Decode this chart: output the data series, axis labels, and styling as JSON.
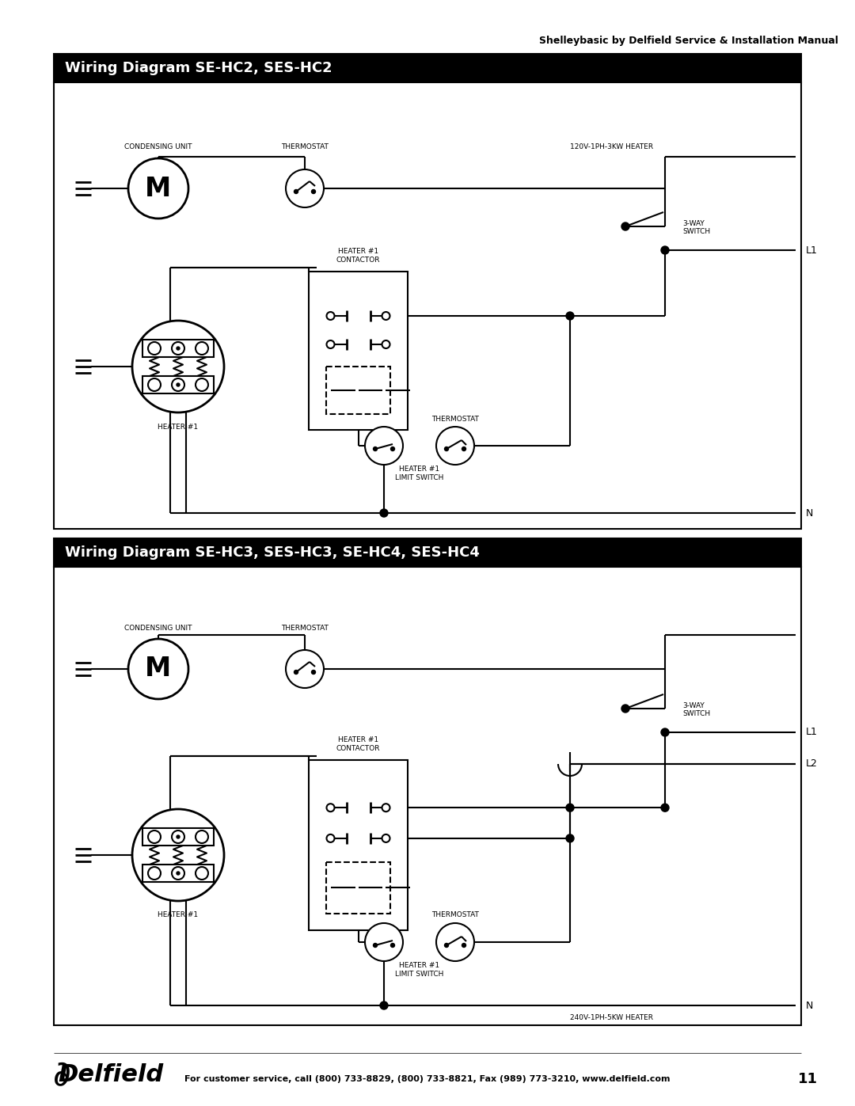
{
  "title_top": "Shelleybasic by Delfield Service & Installation Manual",
  "diagram1_title": "Wiring Diagram SE-HC2, SES-HC2",
  "diagram2_title": "Wiring Diagram SE-HC3, SES-HC3, SE-HC4, SES-HC4",
  "footer": "For customer service, call (800) 733-8829, (800) 733-8821, Fax (989) 773-3210, www.delfield.com",
  "page_num": "11",
  "label_120v": "120V-1PH-3KW HEATER",
  "label_240v": "240V-1PH-5KW HEATER",
  "label_3way": "3-WAY\nSWITCH",
  "label_L1": "L1",
  "label_L2": "L2",
  "label_N": "N",
  "label_condensing": "CONDENSING UNIT",
  "label_thermostat": "THERMOSTAT",
  "label_heater1": "HEATER #1",
  "label_heater1_contactor": "HEATER #1\nCONTACTOR",
  "label_heater1_limit": "HEATER #1\nLIMIT SWITCH",
  "background": "#ffffff",
  "line_color": "#000000",
  "header_bg": "#000000",
  "header_fg": "#ffffff"
}
